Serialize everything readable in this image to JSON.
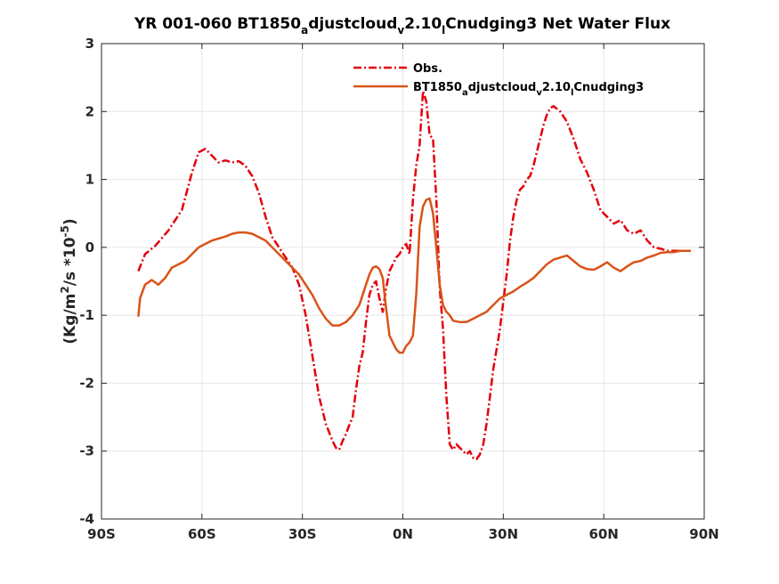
{
  "chart_data": {
    "type": "line",
    "title_parts": [
      "YR 001-060 BT1850",
      "a",
      "djustcloud",
      "v",
      "2.10",
      "l",
      "Cnudging3  Net Water Flux"
    ],
    "ylabel_parts": [
      "(Kg/m",
      "2",
      "/s *10",
      "-5",
      ")"
    ],
    "xlabel": "",
    "xlim": [
      -90,
      90
    ],
    "ylim": [
      -4,
      3
    ],
    "x_ticks": [
      -90,
      -60,
      -30,
      0,
      30,
      60,
      90
    ],
    "x_tick_labels": [
      "90S",
      "60S",
      "30S",
      "0N",
      "30N",
      "60N",
      "90N"
    ],
    "y_ticks": [
      -4,
      -3,
      -2,
      -1,
      0,
      1,
      2,
      3
    ],
    "y_tick_labels": [
      "-4",
      "-3",
      "-2",
      "-1",
      "0",
      "1",
      "2",
      "3"
    ],
    "grid": true,
    "legend_position": "top-right",
    "series": [
      {
        "name": "Obs.",
        "color": "#e3000b",
        "style": "dashdot",
        "x": [
          -79,
          -77,
          -74,
          -70,
          -66,
          -63,
          -61,
          -59,
          -57,
          -55,
          -53,
          -51,
          -49,
          -47,
          -45,
          -43,
          -41,
          -39,
          -37,
          -35,
          -33,
          -31,
          -29,
          -27,
          -25,
          -23,
          -21,
          -20,
          -19,
          -18,
          -17,
          -16,
          -15,
          -14,
          -13,
          -12,
          -11,
          -10,
          -9,
          -8,
          -7,
          -6,
          -5,
          -4,
          -3,
          -2,
          -1,
          0,
          1,
          2,
          3,
          4,
          5,
          6,
          7,
          8,
          9,
          10,
          11,
          12,
          13,
          14,
          15,
          16,
          17,
          18,
          19,
          20,
          21,
          22,
          23,
          24,
          25,
          26,
          27,
          28,
          29,
          30,
          31,
          32,
          33,
          34,
          35,
          36,
          37,
          38,
          39,
          40,
          41,
          42,
          43,
          44,
          45,
          47,
          49,
          51,
          53,
          55,
          57,
          59,
          61,
          63,
          65,
          67,
          69,
          71,
          73,
          75,
          77,
          79,
          81,
          83,
          85,
          86
        ],
        "y": [
          -0.35,
          -0.1,
          0.02,
          0.25,
          0.55,
          1.1,
          1.4,
          1.45,
          1.35,
          1.25,
          1.28,
          1.25,
          1.27,
          1.2,
          1.05,
          0.8,
          0.45,
          0.15,
          0.0,
          -0.15,
          -0.3,
          -0.55,
          -1.0,
          -1.6,
          -2.2,
          -2.6,
          -2.85,
          -2.95,
          -2.98,
          -2.85,
          -2.75,
          -2.62,
          -2.5,
          -2.1,
          -1.75,
          -1.55,
          -1.1,
          -0.7,
          -0.55,
          -0.5,
          -0.75,
          -0.95,
          -0.6,
          -0.35,
          -0.25,
          -0.15,
          -0.1,
          0.0,
          0.05,
          -0.1,
          0.7,
          1.2,
          1.5,
          2.3,
          2.15,
          1.65,
          1.6,
          0.7,
          -0.6,
          -1.2,
          -2.2,
          -2.9,
          -2.98,
          -2.9,
          -2.95,
          -3.0,
          -3.05,
          -3.0,
          -3.1,
          -3.12,
          -3.05,
          -2.9,
          -2.6,
          -2.2,
          -1.8,
          -1.5,
          -1.2,
          -0.8,
          -0.4,
          0.1,
          0.45,
          0.7,
          0.85,
          0.9,
          1.0,
          1.05,
          1.2,
          1.4,
          1.6,
          1.8,
          1.95,
          2.05,
          2.08,
          2.0,
          1.85,
          1.6,
          1.3,
          1.1,
          0.85,
          0.55,
          0.45,
          0.35,
          0.4,
          0.25,
          0.2,
          0.25,
          0.1,
          0.0,
          -0.02,
          -0.05,
          -0.05,
          -0.05,
          -0.05,
          -0.05
        ]
      },
      {
        "name": "BT1850adjustcloudv2.10lCnudging3",
        "name_parts": [
          "BT1850",
          "a",
          "djustcloud",
          "v",
          "2.10",
          "l",
          "Cnudging3"
        ],
        "color": "#d95319",
        "style": "solid",
        "x": [
          -79,
          -78.5,
          -77,
          -75,
          -73,
          -71,
          -69,
          -67,
          -65,
          -63,
          -61,
          -59,
          -57,
          -55,
          -53,
          -51,
          -49,
          -47,
          -45,
          -43,
          -41,
          -39,
          -37,
          -35,
          -33,
          -31,
          -29,
          -27,
          -25,
          -23,
          -21,
          -19,
          -17,
          -15,
          -13,
          -11,
          -10,
          -9,
          -8,
          -7,
          -6,
          -5,
          -4,
          -3,
          -2,
          -1,
          0,
          1,
          2,
          3,
          4,
          5,
          6,
          7,
          8,
          9,
          10,
          11,
          12,
          13,
          14,
          15,
          17,
          19,
          21,
          23,
          25,
          27,
          29,
          31,
          33,
          35,
          37,
          39,
          41,
          43,
          45,
          47,
          49,
          51,
          53,
          55,
          57,
          59,
          61,
          63,
          65,
          67,
          69,
          71,
          73,
          75,
          77,
          79,
          81,
          83,
          85,
          86
        ],
        "y": [
          -1.02,
          -0.75,
          -0.55,
          -0.48,
          -0.55,
          -0.45,
          -0.3,
          -0.25,
          -0.2,
          -0.1,
          0.0,
          0.05,
          0.1,
          0.13,
          0.16,
          0.2,
          0.22,
          0.22,
          0.2,
          0.15,
          0.1,
          0.0,
          -0.1,
          -0.2,
          -0.3,
          -0.4,
          -0.55,
          -0.7,
          -0.9,
          -1.05,
          -1.15,
          -1.15,
          -1.1,
          -1.0,
          -0.85,
          -0.55,
          -0.4,
          -0.3,
          -0.28,
          -0.32,
          -0.45,
          -0.9,
          -1.3,
          -1.4,
          -1.5,
          -1.55,
          -1.55,
          -1.45,
          -1.4,
          -1.3,
          -0.7,
          0.3,
          0.6,
          0.7,
          0.72,
          0.5,
          0.0,
          -0.55,
          -0.85,
          -0.95,
          -1.0,
          -1.08,
          -1.1,
          -1.1,
          -1.05,
          -1.0,
          -0.95,
          -0.85,
          -0.75,
          -0.7,
          -0.65,
          -0.58,
          -0.52,
          -0.45,
          -0.35,
          -0.25,
          -0.18,
          -0.15,
          -0.12,
          -0.2,
          -0.28,
          -0.32,
          -0.33,
          -0.28,
          -0.22,
          -0.3,
          -0.35,
          -0.28,
          -0.22,
          -0.2,
          -0.15,
          -0.12,
          -0.08,
          -0.07,
          -0.07,
          -0.05,
          -0.05,
          -0.05
        ]
      }
    ]
  }
}
